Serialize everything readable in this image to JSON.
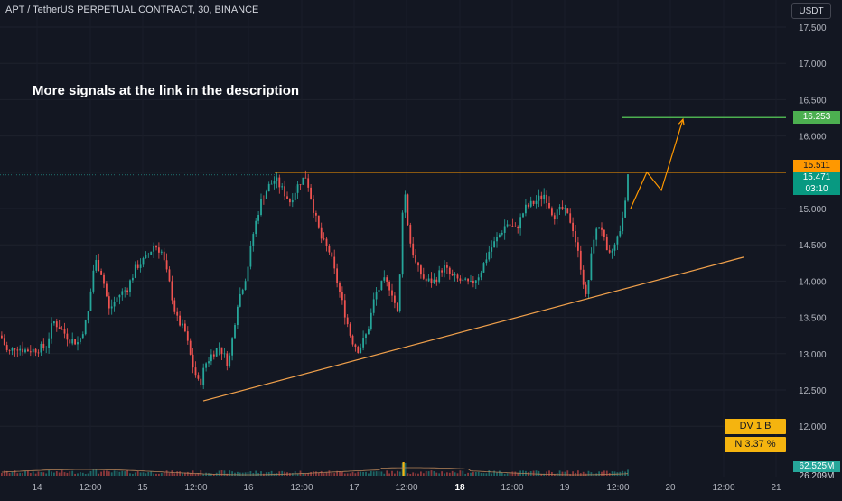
{
  "header": {
    "symbol_title": "APT / TetherUS PERPETUAL CONTRACT, 30, BINANCE",
    "currency_button": "USDT"
  },
  "annotation_text": "More signals at the link in the description",
  "price_axis": {
    "labels": [
      "17.500",
      "17.000",
      "16.500",
      "16.000",
      "15.500",
      "15.000",
      "14.500",
      "14.000",
      "13.500",
      "13.000",
      "12.500",
      "12.000"
    ]
  },
  "time_axis": {
    "labels": [
      "14",
      "12:00",
      "15",
      "12:00",
      "16",
      "12:00",
      "17",
      "12:00",
      "18",
      "12:00",
      "19",
      "12:00",
      "20",
      "12:00",
      "21"
    ]
  },
  "badges": {
    "target_price": "16.253",
    "resistance_price": "15.511",
    "current_price": "15.471",
    "countdown": "03:10",
    "volume_ma": "62.525M",
    "volume_partial": "26.209M"
  },
  "info_boxes": {
    "dv": "DV 1 B",
    "n": "N 3.37 %"
  },
  "colors": {
    "background": "#131722",
    "up": "#26a69a",
    "down": "#ef5350",
    "resistance": "#ff9800",
    "target": "#4caf50",
    "support": "#f0a04b",
    "info": "#f5b40f"
  },
  "chart_data": {
    "type": "candlestick",
    "price_range": [
      11.95,
      17.65
    ],
    "resistance_level": 15.5,
    "target_level": 16.253,
    "current_price": 15.471,
    "trendline": {
      "from_price": 12.35,
      "to_price": 14.33
    },
    "candle_path": [
      [
        0,
        13.25
      ],
      [
        8,
        13.0
      ],
      [
        16,
        13.1
      ],
      [
        26,
        13.05
      ],
      [
        36,
        13.05
      ],
      [
        50,
        13.1
      ],
      [
        58,
        13.45
      ],
      [
        66,
        13.35
      ],
      [
        76,
        13.2
      ],
      [
        86,
        13.15
      ],
      [
        96,
        13.5
      ],
      [
        104,
        14.3
      ],
      [
        112,
        14.1
      ],
      [
        120,
        13.6
      ],
      [
        130,
        13.8
      ],
      [
        140,
        13.9
      ],
      [
        150,
        14.2
      ],
      [
        160,
        14.3
      ],
      [
        170,
        14.5
      ],
      [
        178,
        14.4
      ],
      [
        186,
        14.0
      ],
      [
        194,
        13.5
      ],
      [
        204,
        13.3
      ],
      [
        212,
        12.85
      ],
      [
        220,
        12.55
      ],
      [
        226,
        12.85
      ],
      [
        234,
        13.0
      ],
      [
        242,
        13.1
      ],
      [
        252,
        12.85
      ],
      [
        262,
        13.7
      ],
      [
        272,
        14.1
      ],
      [
        280,
        14.7
      ],
      [
        288,
        15.1
      ],
      [
        296,
        15.3
      ],
      [
        304,
        15.4
      ],
      [
        312,
        15.25
      ],
      [
        320,
        15.1
      ],
      [
        330,
        15.35
      ],
      [
        338,
        15.45
      ],
      [
        346,
        15.0
      ],
      [
        354,
        14.6
      ],
      [
        364,
        14.4
      ],
      [
        372,
        14.0
      ],
      [
        380,
        13.6
      ],
      [
        388,
        13.2
      ],
      [
        396,
        13.05
      ],
      [
        406,
        13.3
      ],
      [
        414,
        13.8
      ],
      [
        424,
        14.0
      ],
      [
        432,
        13.9
      ],
      [
        440,
        13.5
      ],
      [
        446,
        15.4
      ],
      [
        452,
        14.6
      ],
      [
        460,
        14.2
      ],
      [
        470,
        14.0
      ],
      [
        480,
        14.0
      ],
      [
        490,
        14.2
      ],
      [
        500,
        14.05
      ],
      [
        510,
        14.0
      ],
      [
        520,
        13.95
      ],
      [
        530,
        14.1
      ],
      [
        540,
        14.4
      ],
      [
        550,
        14.6
      ],
      [
        560,
        14.8
      ],
      [
        570,
        14.7
      ],
      [
        580,
        15.0
      ],
      [
        592,
        15.1
      ],
      [
        602,
        15.2
      ],
      [
        612,
        14.9
      ],
      [
        622,
        15.0
      ],
      [
        632,
        14.8
      ],
      [
        642,
        14.2
      ],
      [
        648,
        13.75
      ],
      [
        656,
        14.6
      ],
      [
        664,
        14.8
      ],
      [
        672,
        14.3
      ],
      [
        680,
        14.5
      ],
      [
        688,
        14.8
      ],
      [
        696,
        15.47
      ]
    ],
    "projection_path": [
      [
        698,
        15.0
      ],
      [
        716,
        15.5
      ],
      [
        732,
        15.25
      ],
      [
        756,
        16.23
      ]
    ]
  }
}
